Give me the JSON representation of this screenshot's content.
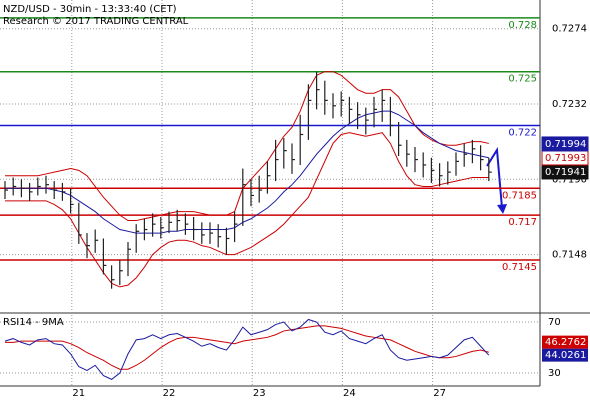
{
  "chart_data": [
    {
      "type": "ohlc",
      "title": "NZD/USD - 30min - 13:33:40 (CET)",
      "subtitle": "Research © 2017 TRADING CENTRAL",
      "categories": [
        null,
        null,
        null,
        null,
        null,
        null,
        null,
        null,
        null,
        "21",
        null,
        null,
        null,
        null,
        null,
        null,
        null,
        null,
        null,
        null,
        "22",
        null,
        null,
        null,
        null,
        null,
        null,
        null,
        null,
        null,
        null,
        "23",
        null,
        null,
        null,
        null,
        null,
        null,
        null,
        null,
        null,
        null,
        "24",
        null,
        null,
        null,
        null,
        null,
        null,
        null,
        null,
        null,
        null,
        "27",
        null,
        null,
        null,
        null,
        null,
        null
      ],
      "high": [
        0.7189,
        0.7191,
        0.719,
        0.7188,
        0.7191,
        0.7192,
        0.7189,
        0.7188,
        0.7185,
        0.7177,
        0.716,
        0.7162,
        0.7157,
        0.7142,
        0.7145,
        0.7155,
        0.7165,
        0.7168,
        0.7171,
        0.7169,
        0.7172,
        0.7173,
        0.7171,
        0.7169,
        0.7166,
        0.7166,
        0.7165,
        0.7163,
        0.7172,
        0.7196,
        0.719,
        0.7192,
        0.72,
        0.7212,
        0.7213,
        0.721,
        0.7226,
        0.7243,
        0.725,
        0.7245,
        0.7238,
        0.7239,
        0.7236,
        0.7233,
        0.723,
        0.7236,
        0.724,
        0.7236,
        0.7222,
        0.7212,
        0.7208,
        0.7205,
        0.7202,
        0.7199,
        0.72,
        0.7205,
        0.721,
        0.7212,
        0.7209,
        0.7202
      ],
      "low": [
        0.7179,
        0.7181,
        0.718,
        0.7178,
        0.7181,
        0.7182,
        0.7179,
        0.7178,
        0.7171,
        0.7154,
        0.7146,
        0.7149,
        0.7137,
        0.7129,
        0.7131,
        0.7136,
        0.7149,
        0.7156,
        0.7158,
        0.7157,
        0.716,
        0.7161,
        0.7159,
        0.7156,
        0.7154,
        0.7154,
        0.7152,
        0.7148,
        0.7155,
        0.7164,
        0.7175,
        0.7177,
        0.7182,
        0.7189,
        0.7196,
        0.7193,
        0.7198,
        0.7212,
        0.7229,
        0.7226,
        0.7224,
        0.7225,
        0.7221,
        0.7218,
        0.7215,
        0.7219,
        0.7222,
        0.7214,
        0.7203,
        0.7197,
        0.7194,
        0.7191,
        0.7188,
        0.7186,
        0.7187,
        0.7192,
        0.7197,
        0.7199,
        0.7195,
        0.7189
      ],
      "close": [
        0.7184,
        0.7186,
        0.7185,
        0.7183,
        0.7186,
        0.7187,
        0.7184,
        0.7183,
        0.7176,
        0.7159,
        0.7153,
        0.7156,
        0.7142,
        0.7134,
        0.7139,
        0.7151,
        0.7161,
        0.7162,
        0.7165,
        0.7163,
        0.7166,
        0.7167,
        0.7165,
        0.7162,
        0.7159,
        0.716,
        0.7158,
        0.7157,
        0.7165,
        0.7187,
        0.7181,
        0.7184,
        0.7192,
        0.7201,
        0.7206,
        0.7201,
        0.7215,
        0.7234,
        0.724,
        0.7234,
        0.7231,
        0.7234,
        0.7229,
        0.7226,
        0.7223,
        0.7229,
        0.7234,
        0.722,
        0.7209,
        0.7204,
        0.7201,
        0.7198,
        0.7195,
        0.7192,
        0.7194,
        0.72,
        0.7204,
        0.7207,
        0.7201,
        0.7194
      ],
      "bar_color": "#222222",
      "overlays": [
        {
          "color": "#cc0000",
          "values": [
            0.7192,
            0.7192,
            0.7192,
            0.7192,
            0.7192,
            0.7193,
            0.7194,
            0.7195,
            0.7196,
            0.7195,
            0.7192,
            0.7186,
            0.718,
            0.7175,
            0.717,
            0.7167,
            0.7167,
            0.7168,
            0.7169,
            0.717,
            0.7171,
            0.7172,
            0.7172,
            0.7172,
            0.7171,
            0.717,
            0.717,
            0.717,
            0.7172,
            0.7185,
            0.719,
            0.7195,
            0.72,
            0.7207,
            0.7214,
            0.7219,
            0.7228,
            0.724,
            0.7248,
            0.725,
            0.725,
            0.7248,
            0.7244,
            0.724,
            0.7238,
            0.7238,
            0.724,
            0.724,
            0.7236,
            0.7228,
            0.722,
            0.7215,
            0.7212,
            0.721,
            0.7209,
            0.7209,
            0.721,
            0.7211,
            0.7211,
            0.721
          ]
        },
        {
          "color": "#cc0000",
          "values": [
            0.7178,
            0.7178,
            0.7178,
            0.7178,
            0.7178,
            0.7178,
            0.7176,
            0.7173,
            0.7168,
            0.716,
            0.7152,
            0.7145,
            0.7138,
            0.7132,
            0.713,
            0.7131,
            0.7135,
            0.7141,
            0.7148,
            0.7152,
            0.7155,
            0.7156,
            0.7156,
            0.7155,
            0.7153,
            0.7152,
            0.715,
            0.7148,
            0.7148,
            0.715,
            0.7152,
            0.7155,
            0.7158,
            0.7161,
            0.7165,
            0.717,
            0.7175,
            0.718,
            0.719,
            0.72,
            0.721,
            0.7215,
            0.7216,
            0.7215,
            0.7214,
            0.7215,
            0.7216,
            0.721,
            0.72,
            0.7192,
            0.7187,
            0.7186,
            0.7186,
            0.7187,
            0.7188,
            0.7189,
            0.719,
            0.7191,
            0.7191,
            0.7191
          ]
        },
        {
          "color": "#1a1aa0",
          "values": [
            0.7185,
            0.7185,
            0.7185,
            0.7185,
            0.7185,
            0.7185,
            0.7184,
            0.7183,
            0.7181,
            0.7178,
            0.7175,
            0.7172,
            0.7168,
            0.7165,
            0.7162,
            0.7161,
            0.716,
            0.716,
            0.716,
            0.716,
            0.7161,
            0.7161,
            0.7162,
            0.7162,
            0.7162,
            0.7162,
            0.7162,
            0.7162,
            0.7163,
            0.7166,
            0.7168,
            0.7171,
            0.7174,
            0.7178,
            0.7183,
            0.7187,
            0.7192,
            0.7198,
            0.7204,
            0.7209,
            0.7214,
            0.7218,
            0.7221,
            0.7224,
            0.7226,
            0.7227,
            0.7228,
            0.7228,
            0.7226,
            0.7223,
            0.722,
            0.7216,
            0.7213,
            0.721,
            0.7208,
            0.7206,
            0.7205,
            0.7204,
            0.7203,
            0.7202
          ]
        }
      ],
      "levels": [
        {
          "value": 0.728,
          "color": "#1a8a1a"
        },
        {
          "value": 0.725,
          "color": "#1a8a1a"
        },
        {
          "value": 0.722,
          "color": "#1a1acc"
        },
        {
          "value": 0.7185,
          "color": "#cc0000"
        },
        {
          "value": 0.717,
          "color": "#cc0000"
        },
        {
          "value": 0.7145,
          "color": "#cc0000"
        }
      ],
      "price_labels": [
        {
          "value": 0.71994,
          "color": "#1a1aa0",
          "filled": true
        },
        {
          "value": 0.71993,
          "color": "#cc0000",
          "filled": false
        },
        {
          "value": 0.71941,
          "color": "#111111",
          "filled": true
        }
      ],
      "ylim": [
        0.7116,
        0.729
      ],
      "yticks": [
        0.7274,
        0.7232,
        {
          "value": 0.719,
          "label": "0.7190"
        },
        0.7148
      ],
      "grid": true
    },
    {
      "type": "line",
      "title": "RSI14 - 9MA",
      "series": [
        {
          "color": "#cc0000",
          "values": [
            54,
            54,
            55,
            55,
            55,
            55,
            55,
            55,
            53,
            50,
            46,
            43,
            40,
            36,
            33,
            33,
            36,
            40,
            45,
            50,
            54,
            57,
            58,
            58,
            57,
            56,
            55,
            54,
            53,
            55,
            56,
            57,
            58,
            60,
            63,
            64,
            65,
            66,
            67,
            67,
            66,
            65,
            63,
            61,
            59,
            58,
            57,
            56,
            53,
            50,
            47,
            45,
            43,
            42,
            42,
            43,
            45,
            47,
            48,
            46.3
          ]
        },
        {
          "color": "#1a1aa0",
          "values": [
            55,
            57,
            54,
            52,
            56,
            57,
            53,
            52,
            45,
            35,
            32,
            36,
            28,
            25,
            30,
            45,
            56,
            57,
            60,
            57,
            60,
            61,
            58,
            55,
            51,
            53,
            50,
            48,
            56,
            66,
            60,
            62,
            64,
            68,
            70,
            63,
            66,
            72,
            70,
            62,
            60,
            63,
            57,
            55,
            53,
            57,
            60,
            48,
            42,
            40,
            41,
            42,
            43,
            42,
            44,
            50,
            56,
            58,
            51,
            44
          ]
        }
      ],
      "last_value_labels": [
        {
          "value": 46.2762,
          "color": "#cc0000"
        },
        {
          "value": 44.0261,
          "color": "#1a1aa0"
        }
      ],
      "ylim": [
        20.6,
        75.5
      ],
      "yticks": [
        30,
        70
      ],
      "grid": true
    }
  ]
}
